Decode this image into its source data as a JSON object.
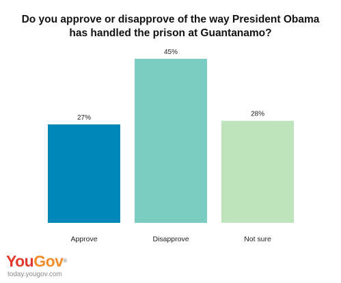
{
  "title": {
    "line1": "Do you approve or disapprove of the way President Obama",
    "line2": "has handled the prison at Guantanamo?"
  },
  "chart_data": {
    "type": "bar",
    "categories": [
      "Approve",
      "Disapprove",
      "Not sure"
    ],
    "values": [
      27,
      45,
      28
    ],
    "value_labels": [
      "27%",
      "45%",
      "28%"
    ],
    "colors": [
      "#0087ba",
      "#7bcdc2",
      "#bde4bb"
    ],
    "ylim": [
      0,
      45
    ],
    "grid": false,
    "legend": "none"
  },
  "branding": {
    "logo_part1": "You",
    "logo_part2": "Gov",
    "registered": "®",
    "site": "today.yougov.com"
  }
}
